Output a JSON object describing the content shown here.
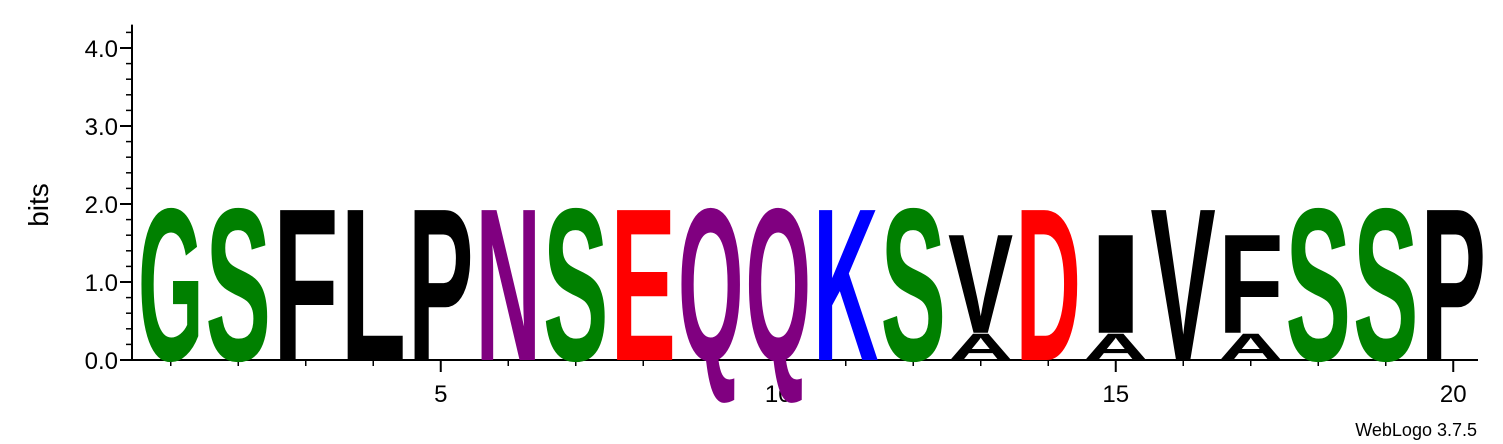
{
  "chart_data": {
    "type": "sequence-logo",
    "ylabel": "bits",
    "ylim": [
      0,
      4.3
    ],
    "yticks": [
      {
        "value": 0,
        "label": "0.0"
      },
      {
        "value": 1,
        "label": "1.0"
      },
      {
        "value": 2,
        "label": "2.0"
      },
      {
        "value": 3,
        "label": "3.0"
      },
      {
        "value": 4,
        "label": "4.0"
      }
    ],
    "xticks": [
      {
        "value": 5,
        "label": "5"
      },
      {
        "value": 10,
        "label": "10"
      },
      {
        "value": 15,
        "label": "15"
      },
      {
        "value": 20,
        "label": "20"
      }
    ],
    "xlim": [
      0.5,
      20.5
    ],
    "positions": [
      {
        "pos": 1,
        "stack": [
          {
            "letter": "G",
            "bits": 2.0
          }
        ]
      },
      {
        "pos": 2,
        "stack": [
          {
            "letter": "S",
            "bits": 2.0
          }
        ]
      },
      {
        "pos": 3,
        "stack": [
          {
            "letter": "F",
            "bits": 2.0
          }
        ]
      },
      {
        "pos": 4,
        "stack": [
          {
            "letter": "L",
            "bits": 2.0
          }
        ]
      },
      {
        "pos": 5,
        "stack": [
          {
            "letter": "P",
            "bits": 2.0
          }
        ]
      },
      {
        "pos": 6,
        "stack": [
          {
            "letter": "N",
            "bits": 2.0
          }
        ]
      },
      {
        "pos": 7,
        "stack": [
          {
            "letter": "S",
            "bits": 2.0
          }
        ]
      },
      {
        "pos": 8,
        "stack": [
          {
            "letter": "E",
            "bits": 2.0
          }
        ]
      },
      {
        "pos": 9,
        "stack": [
          {
            "letter": "Q",
            "bits": 2.0
          }
        ]
      },
      {
        "pos": 10,
        "stack": [
          {
            "letter": "Q",
            "bits": 2.0
          }
        ]
      },
      {
        "pos": 11,
        "stack": [
          {
            "letter": "K",
            "bits": 2.0
          }
        ]
      },
      {
        "pos": 12,
        "stack": [
          {
            "letter": "S",
            "bits": 2.0
          }
        ]
      },
      {
        "pos": 13,
        "stack": [
          {
            "letter": "A",
            "bits": 0.35
          },
          {
            "letter": "V",
            "bits": 1.3
          }
        ]
      },
      {
        "pos": 14,
        "stack": [
          {
            "letter": "D",
            "bits": 2.0
          }
        ]
      },
      {
        "pos": 15,
        "stack": [
          {
            "letter": "A",
            "bits": 0.35
          },
          {
            "letter": "I",
            "bits": 1.3
          }
        ]
      },
      {
        "pos": 16,
        "stack": [
          {
            "letter": "V",
            "bits": 2.0
          }
        ]
      },
      {
        "pos": 17,
        "stack": [
          {
            "letter": "A",
            "bits": 0.35
          },
          {
            "letter": "F",
            "bits": 1.3
          }
        ]
      },
      {
        "pos": 18,
        "stack": [
          {
            "letter": "S",
            "bits": 2.0
          }
        ]
      },
      {
        "pos": 19,
        "stack": [
          {
            "letter": "S",
            "bits": 2.0
          }
        ]
      },
      {
        "pos": 20,
        "stack": [
          {
            "letter": "P",
            "bits": 2.0
          }
        ]
      }
    ],
    "colors": {
      "G": "#008000",
      "S": "#008000",
      "T": "#008000",
      "Y": "#008000",
      "C": "#008000",
      "N": "#800080",
      "Q": "#800080",
      "K": "#0000ff",
      "R": "#0000ff",
      "H": "#0000ff",
      "D": "#ff0000",
      "E": "#ff0000",
      "P": "#000000",
      "A": "#000000",
      "W": "#000000",
      "F": "#000000",
      "L": "#000000",
      "I": "#000000",
      "M": "#000000",
      "V": "#000000"
    }
  },
  "credit": "WebLogo 3.7.5"
}
